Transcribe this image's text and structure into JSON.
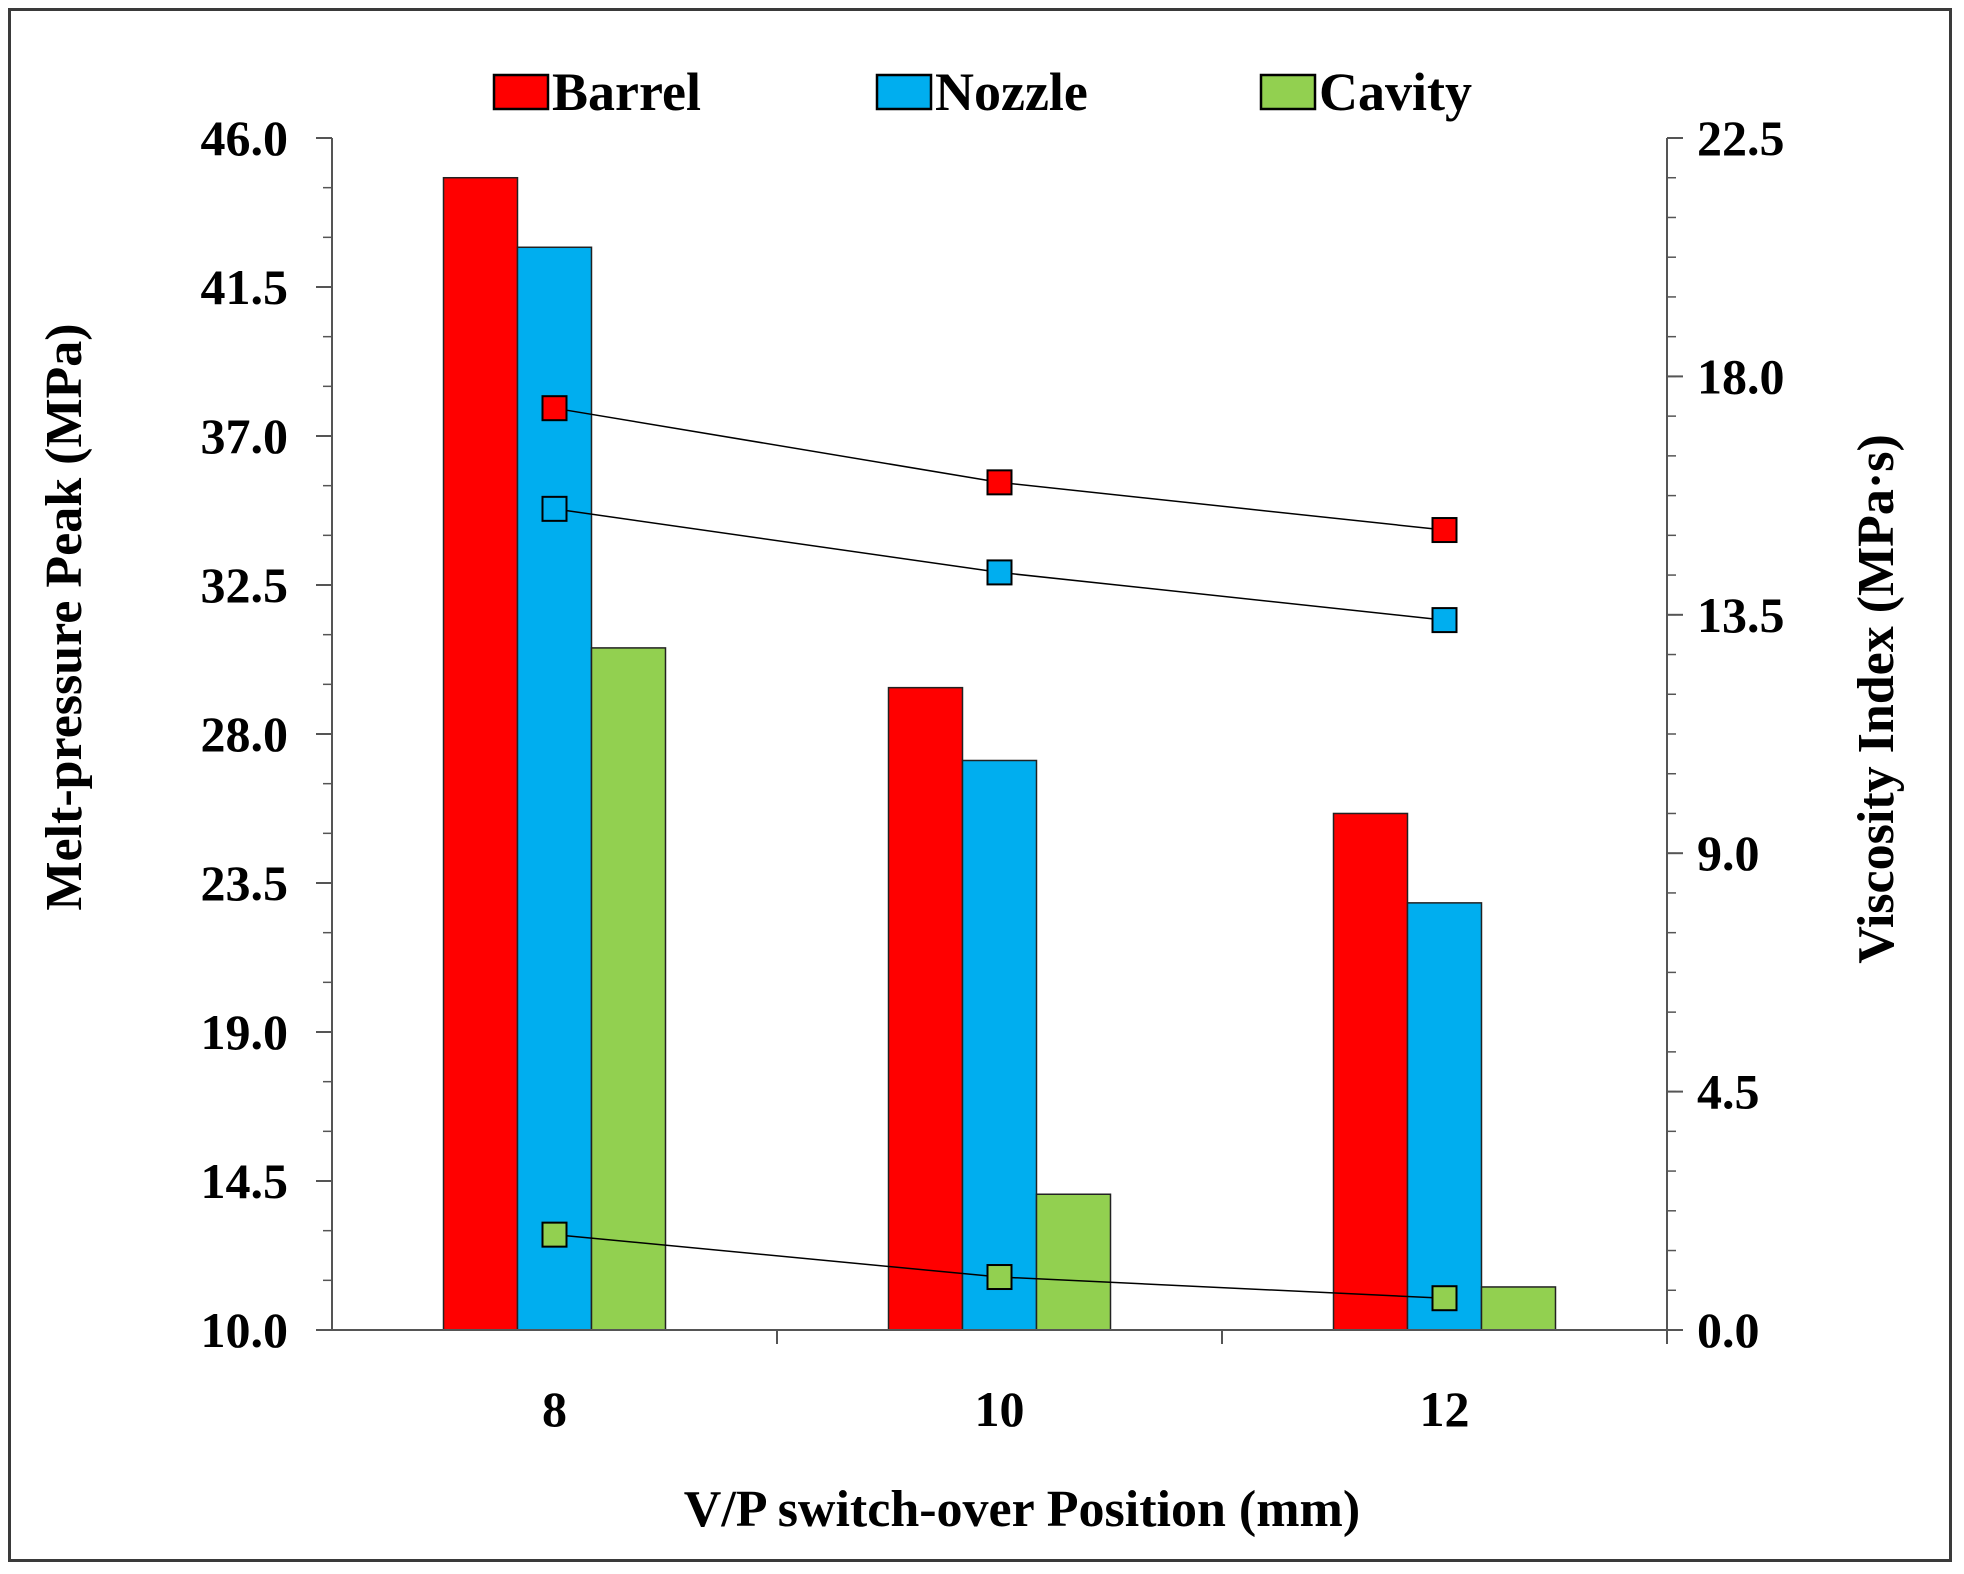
{
  "chart_data": {
    "type": "bar",
    "categories": [
      "8",
      "10",
      "12"
    ],
    "xlabel": "V/P switch-over Position (mm)",
    "ylabel": "Melt-pressure  Peak (MPa)",
    "y2label": "Viscosity Index (MPa·s)",
    "ylim": [
      10.0,
      46.0
    ],
    "y2lim": [
      0.0,
      22.5
    ],
    "yticks": [
      "10.0",
      "14.5",
      "19.0",
      "23.5",
      "28.0",
      "32.5",
      "37.0",
      "41.5",
      "46.0"
    ],
    "y2ticks": [
      "0.0",
      "4.5",
      "9.0",
      "13.5",
      "18.0",
      "22.5"
    ],
    "grid": false,
    "legend_position": "top",
    "series": [
      {
        "name": "Barrel",
        "color": "#ff0000",
        "values": [
          44.8,
          29.4,
          25.6
        ],
        "line_values": [
          17.4,
          16.0,
          15.1
        ]
      },
      {
        "name": "Nozzle",
        "color": "#00aeef",
        "values": [
          42.7,
          27.2,
          22.9
        ],
        "line_values": [
          15.5,
          14.3,
          13.4
        ]
      },
      {
        "name": "Cavity",
        "color": "#92d050",
        "values": [
          30.6,
          14.1,
          11.3
        ],
        "line_values": [
          1.8,
          1.0,
          0.6
        ]
      }
    ]
  }
}
